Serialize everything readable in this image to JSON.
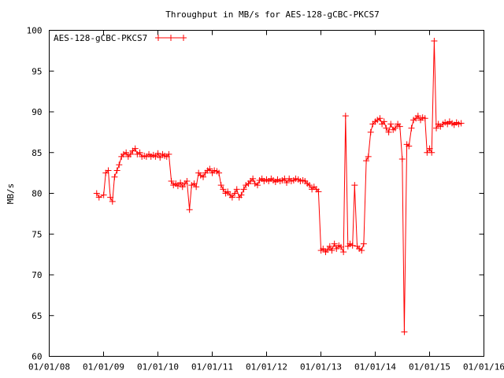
{
  "chart_data": {
    "type": "line",
    "title": "Throughput in MB/s for AES-128-gCBC-PKCS7",
    "xlabel": "",
    "ylabel": "MB/s",
    "ylim": [
      60,
      100
    ],
    "xlim": [
      "2008-01-01",
      "2016-01-01"
    ],
    "x_ticks": [
      "01/01/08",
      "01/01/09",
      "01/01/10",
      "01/01/11",
      "01/01/12",
      "01/01/13",
      "01/01/14",
      "01/01/15",
      "01/01/16"
    ],
    "y_ticks": [
      60,
      65,
      70,
      75,
      80,
      85,
      90,
      95,
      100
    ],
    "grid": false,
    "legend_position": "top-left",
    "point_marker": "plus",
    "series": [
      {
        "name": "AES-128-gCBC-PKCS7",
        "color": "#ff0000",
        "x": [
          "2008-11-15",
          "2008-12-01",
          "2009-01-01",
          "2009-01-15",
          "2009-02-01",
          "2009-02-15",
          "2009-03-01",
          "2009-03-15",
          "2009-04-01",
          "2009-04-15",
          "2009-05-01",
          "2009-05-15",
          "2009-06-01",
          "2009-06-15",
          "2009-07-01",
          "2009-07-15",
          "2009-08-01",
          "2009-08-15",
          "2009-09-01",
          "2009-09-15",
          "2009-10-01",
          "2009-10-15",
          "2009-11-01",
          "2009-11-15",
          "2009-12-01",
          "2009-12-15",
          "2010-01-01",
          "2010-01-15",
          "2010-02-01",
          "2010-02-15",
          "2010-03-01",
          "2010-03-15",
          "2010-04-01",
          "2010-04-15",
          "2010-05-01",
          "2010-05-15",
          "2010-06-01",
          "2010-06-15",
          "2010-07-01",
          "2010-07-15",
          "2010-08-01",
          "2010-08-15",
          "2010-09-01",
          "2010-09-15",
          "2010-10-01",
          "2010-10-15",
          "2010-11-01",
          "2010-11-15",
          "2010-12-01",
          "2010-12-15",
          "2011-01-01",
          "2011-01-15",
          "2011-02-01",
          "2011-02-15",
          "2011-03-01",
          "2011-03-15",
          "2011-04-01",
          "2011-04-15",
          "2011-05-01",
          "2011-05-15",
          "2011-06-01",
          "2011-06-15",
          "2011-07-01",
          "2011-07-15",
          "2011-08-01",
          "2011-08-15",
          "2011-09-01",
          "2011-09-15",
          "2011-10-01",
          "2011-10-15",
          "2011-11-01",
          "2011-11-15",
          "2011-12-01",
          "2011-12-15",
          "2012-01-01",
          "2012-01-15",
          "2012-02-01",
          "2012-02-15",
          "2012-03-01",
          "2012-03-15",
          "2012-04-01",
          "2012-04-15",
          "2012-05-01",
          "2012-05-15",
          "2012-06-01",
          "2012-06-15",
          "2012-07-01",
          "2012-07-15",
          "2012-08-01",
          "2012-08-15",
          "2012-09-01",
          "2012-09-15",
          "2012-10-01",
          "2012-10-15",
          "2012-11-01",
          "2012-11-15",
          "2012-12-01",
          "2012-12-15",
          "2013-01-01",
          "2013-01-15",
          "2013-02-01",
          "2013-02-15",
          "2013-03-01",
          "2013-03-15",
          "2013-04-01",
          "2013-04-15",
          "2013-05-01",
          "2013-05-15",
          "2013-06-01",
          "2013-06-15",
          "2013-07-01",
          "2013-07-15",
          "2013-08-01",
          "2013-08-15",
          "2013-09-01",
          "2013-09-15",
          "2013-10-01",
          "2013-10-15",
          "2013-11-01",
          "2013-11-15",
          "2013-12-01",
          "2013-12-15",
          "2014-01-01",
          "2014-01-15",
          "2014-02-01",
          "2014-02-15",
          "2014-03-01",
          "2014-03-15",
          "2014-04-01",
          "2014-04-15",
          "2014-05-01",
          "2014-05-15",
          "2014-06-01",
          "2014-06-15",
          "2014-07-01",
          "2014-07-15",
          "2014-08-01",
          "2014-08-15",
          "2014-09-01",
          "2014-09-15",
          "2014-10-01",
          "2014-10-15",
          "2014-11-01",
          "2014-11-15",
          "2014-12-01",
          "2014-12-15",
          "2015-01-01",
          "2015-01-15",
          "2015-02-01",
          "2015-02-15",
          "2015-03-01",
          "2015-03-15",
          "2015-04-01",
          "2015-04-15",
          "2015-05-01",
          "2015-05-15",
          "2015-06-01",
          "2015-06-15",
          "2015-07-01",
          "2015-07-15",
          "2015-08-01"
        ],
        "y": [
          80.0,
          79.5,
          79.8,
          82.5,
          82.8,
          79.5,
          79.0,
          82.0,
          82.8,
          83.5,
          84.5,
          84.8,
          85.0,
          84.5,
          84.8,
          85.2,
          85.5,
          84.8,
          85.0,
          84.5,
          84.6,
          84.5,
          84.8,
          84.5,
          84.7,
          84.5,
          84.9,
          84.4,
          84.8,
          84.6,
          84.5,
          84.8,
          81.5,
          81.0,
          81.2,
          80.9,
          81.3,
          80.8,
          81.2,
          81.5,
          78.0,
          81.0,
          81.2,
          80.8,
          82.5,
          82.2,
          82.0,
          82.5,
          82.8,
          83.0,
          82.5,
          82.8,
          82.7,
          82.5,
          81.0,
          80.5,
          80.0,
          80.2,
          79.8,
          79.5,
          80.0,
          80.5,
          79.5,
          79.8,
          80.5,
          81.0,
          81.2,
          81.5,
          81.8,
          81.2,
          81.0,
          81.6,
          81.8,
          81.5,
          81.7,
          81.5,
          81.8,
          81.6,
          81.4,
          81.7,
          81.5,
          81.6,
          81.8,
          81.3,
          81.8,
          81.5,
          81.6,
          81.8,
          81.7,
          81.5,
          81.6,
          81.5,
          81.2,
          81.0,
          80.5,
          80.8,
          80.5,
          80.2,
          73.0,
          73.2,
          72.8,
          73.1,
          73.5,
          73.0,
          73.8,
          73.2,
          73.6,
          73.4,
          72.8,
          89.5,
          73.5,
          73.8,
          73.6,
          81.0,
          73.5,
          73.2,
          73.0,
          73.8,
          84.0,
          84.5,
          87.5,
          88.5,
          88.8,
          89.0,
          89.2,
          88.5,
          88.8,
          88.0,
          87.5,
          88.5,
          87.8,
          88.0,
          88.5,
          88.2,
          84.2,
          63.0,
          86.0,
          85.8,
          88.0,
          89.0,
          89.2,
          89.5,
          89.0,
          89.3,
          89.2,
          85.0,
          85.5,
          85.0,
          98.7,
          88.0,
          88.5,
          88.2,
          88.5,
          88.7,
          88.5,
          88.8,
          88.6,
          88.4,
          88.7,
          88.5,
          88.6
        ]
      }
    ]
  }
}
